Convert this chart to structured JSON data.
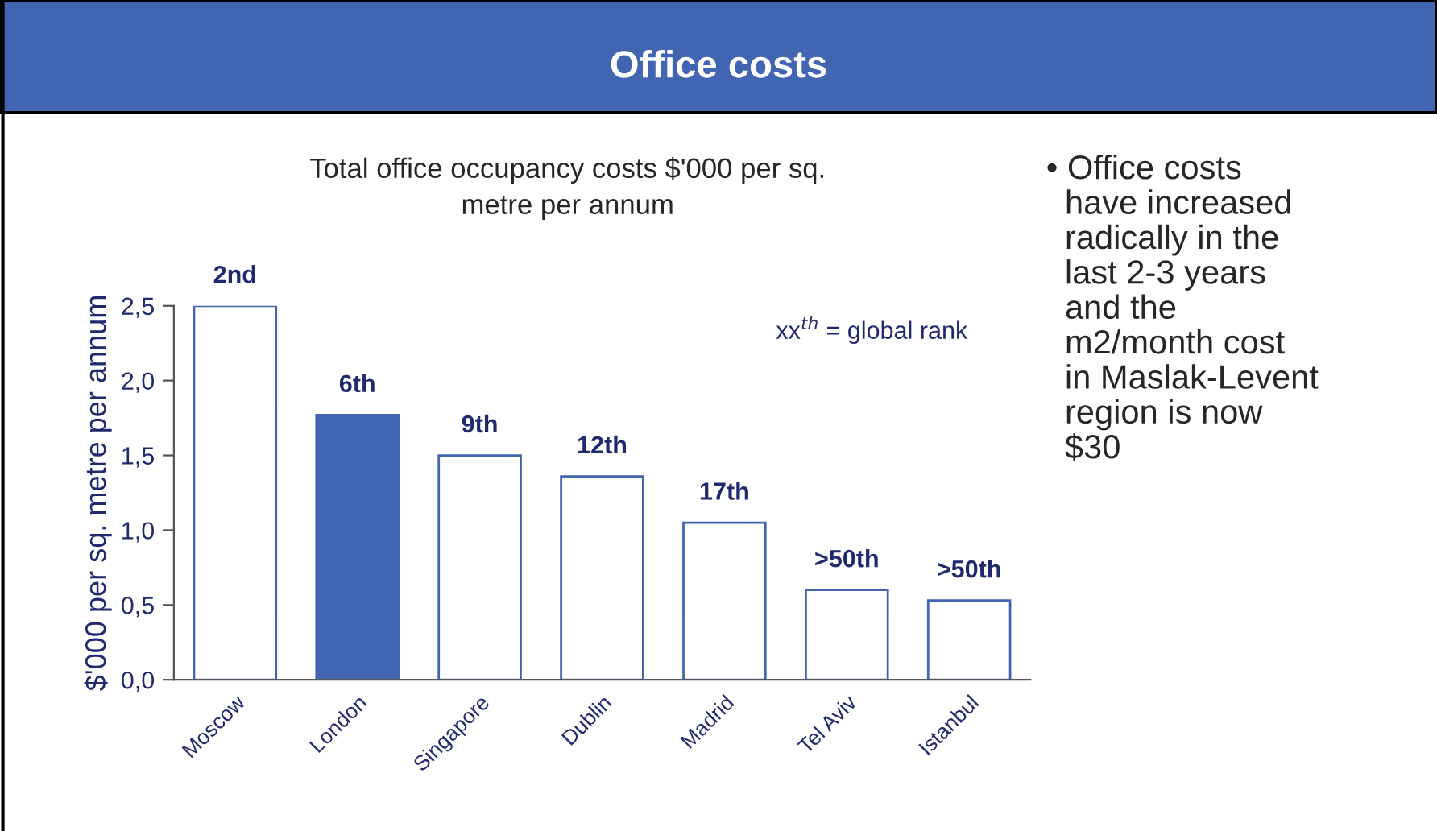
{
  "chart_data": {
    "type": "bar",
    "title": "Office costs",
    "subtitle": "Total office occupancy costs $'000 per sq.\nmetre per annum",
    "ylabel": "$'000 per sq. metre per annum",
    "categories": [
      "Moscow",
      "London",
      "Singapore",
      "Dublin",
      "Madrid",
      "Tel Aviv",
      "Istanbul"
    ],
    "values": [
      2.5,
      1.77,
      1.5,
      1.36,
      1.05,
      0.6,
      0.53
    ],
    "colors": [
      "#ffffff",
      "#4165b0",
      "#ffffff",
      "#ffffff",
      "#ffffff",
      "#ffffff",
      "#ffffff"
    ],
    "ylim": [
      0,
      2.5
    ],
    "yticks": [
      {
        "value": 0,
        "label": "0,0"
      },
      {
        "value": 0.5,
        "label": "0,5"
      },
      {
        "value": 1.0,
        "label": "1,0"
      },
      {
        "value": 1.5,
        "label": "1,5"
      },
      {
        "value": 2.0,
        "label": "2,0"
      },
      {
        "value": 2.5,
        "label": "2,5"
      }
    ],
    "annotations": [
      {
        "text": "2nd",
        "x": "Moscow",
        "y": 2.5
      },
      {
        "text": "6th",
        "x": "London",
        "y": 1.77
      },
      {
        "text": "9th",
        "x": "Singapore",
        "y": 1.5
      },
      {
        "text": "12th",
        "x": "Dublin",
        "y": 1.36
      },
      {
        "text": "17th",
        "x": "Madrid",
        "y": 1.05
      },
      {
        "text": ">50th",
        "x": "Tel Aviv",
        "y": 0.6
      },
      {
        "text": ">50th",
        "x": "Istanbul",
        "y": 0.53
      },
      "xx$^{th}$ = global rank",
      "• Office costs\n  have increased\n  radically in the\n  last 2-3 years\n  and the\n  m2/month cost\n  in Maslak-Levent\n  region is now\n  $30"
    ],
    "grid": false,
    "legend": false
  }
}
